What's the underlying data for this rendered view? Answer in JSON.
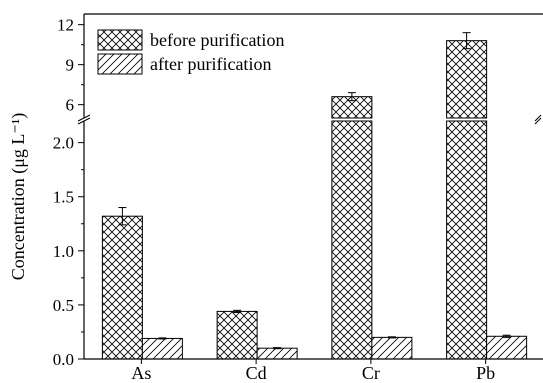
{
  "chart_data": {
    "type": "bar",
    "categories": [
      "As",
      "Cd",
      "Cr",
      "Pb"
    ],
    "series": [
      {
        "name": "before purification",
        "pattern": "crosshatch",
        "values": [
          1.32,
          0.44,
          6.6,
          10.8
        ],
        "errors": [
          0.08,
          0.01,
          0.3,
          0.6
        ]
      },
      {
        "name": "after purification",
        "pattern": "diagonal",
        "values": [
          0.19,
          0.1,
          0.2,
          0.21
        ],
        "errors": [
          0.005,
          0.005,
          0.005,
          0.01
        ]
      }
    ],
    "ylabel": "Concentration (μg L⁻¹)",
    "y_lower_range": [
      0.0,
      2.2
    ],
    "y_upper_range": [
      5.0,
      12.8
    ],
    "axis_break": true,
    "y_lower_ticks": [
      "0.0",
      "0.5",
      "1.0",
      "1.5",
      "2.0"
    ],
    "y_upper_ticks": [
      "6",
      "9",
      "12"
    ],
    "legend_position": "top-left",
    "grid": false
  }
}
